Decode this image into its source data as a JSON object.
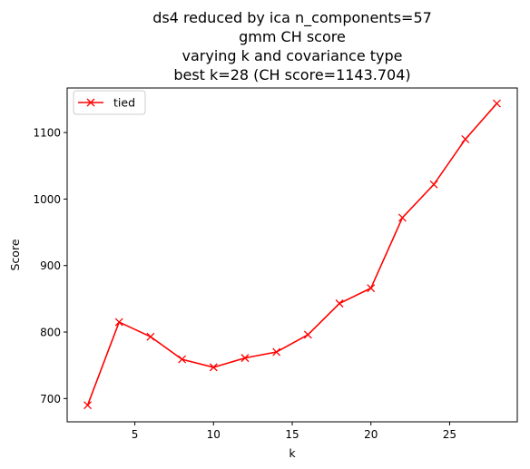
{
  "chart_data": {
    "type": "line",
    "title_lines": [
      "ds4 reduced by ica n_components=57",
      "gmm CH score",
      "varying k and covariance type",
      "best k=28 (CH score=1143.704)"
    ],
    "xlabel": "k",
    "ylabel": "Score",
    "xlim": [
      0.7,
      29.3
    ],
    "ylim": [
      665,
      1167
    ],
    "xticks": [
      5,
      10,
      15,
      20,
      25
    ],
    "yticks": [
      700,
      800,
      900,
      1000,
      1100
    ],
    "grid": false,
    "legend_position": "top-left",
    "series": [
      {
        "name": "tied",
        "color": "#ff0000",
        "marker": "x",
        "x": [
          2,
          4,
          6,
          8,
          10,
          12,
          14,
          16,
          18,
          20,
          22,
          24,
          26,
          28
        ],
        "y": [
          690,
          815,
          793,
          759,
          747,
          761,
          770,
          796,
          843,
          866,
          972,
          1022,
          1090,
          1143.704
        ]
      }
    ]
  }
}
